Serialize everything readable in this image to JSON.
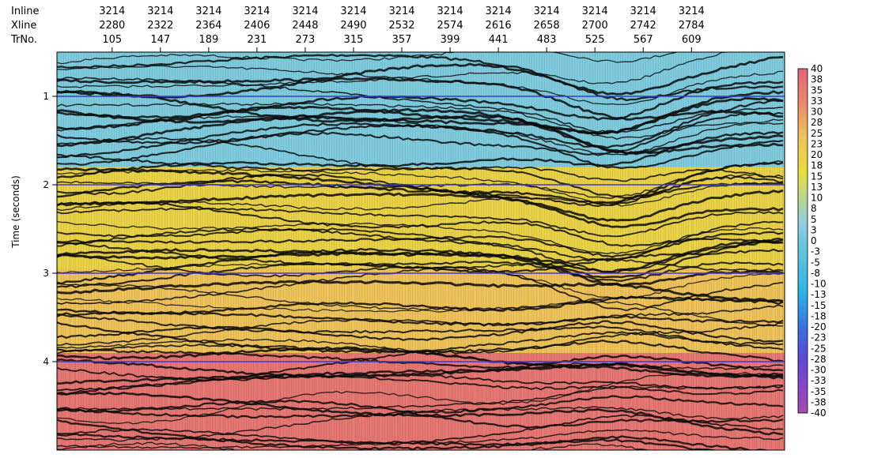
{
  "chart_data": {
    "type": "heatmap",
    "title": "",
    "ylabel": "Time (seconds)",
    "header_row_labels": [
      "Inline",
      "Xline",
      "TrNo."
    ],
    "traces": [
      {
        "inline": "3214",
        "xline": "2280",
        "trno": "105"
      },
      {
        "inline": "3214",
        "xline": "2322",
        "trno": "147"
      },
      {
        "inline": "3214",
        "xline": "2364",
        "trno": "189"
      },
      {
        "inline": "3214",
        "xline": "2406",
        "trno": "231"
      },
      {
        "inline": "3214",
        "xline": "2448",
        "trno": "273"
      },
      {
        "inline": "3214",
        "xline": "2490",
        "trno": "315"
      },
      {
        "inline": "3214",
        "xline": "2532",
        "trno": "357"
      },
      {
        "inline": "3214",
        "xline": "2574",
        "trno": "399"
      },
      {
        "inline": "3214",
        "xline": "2616",
        "trno": "441"
      },
      {
        "inline": "3214",
        "xline": "2658",
        "trno": "483"
      },
      {
        "inline": "3214",
        "xline": "2700",
        "trno": "525"
      },
      {
        "inline": "3214",
        "xline": "2742",
        "trno": "567"
      },
      {
        "inline": "3214",
        "xline": "2784",
        "trno": "609"
      }
    ],
    "trace_range": [
      57,
      690
    ],
    "time_ticks": [
      1,
      2,
      3,
      4
    ],
    "ylim": [
      0.5,
      5.0
    ],
    "horizon_lines_at": [
      1,
      2,
      3,
      4
    ],
    "horizon_color": "#3a3ad0",
    "colorbar": {
      "labels": [
        "40",
        "38",
        "35",
        "33",
        "30",
        "28",
        "25",
        "23",
        "20",
        "18",
        "15",
        "13",
        "10",
        "8",
        "5",
        "3",
        "0",
        "-3",
        "-5",
        "-8",
        "-10",
        "-13",
        "-15",
        "-18",
        "-20",
        "-23",
        "-25",
        "-28",
        "-30",
        "-33",
        "-35",
        "-38",
        "-40"
      ],
      "range": [
        -40,
        40
      ],
      "colors": [
        "#e46479",
        "#e88a6c",
        "#eec35a",
        "#e9dc3c",
        "#8fd0e0",
        "#6fc8dc",
        "#2fb3e6",
        "#3a72e0",
        "#5a4ad6",
        "#8746c4",
        "#a54cb0"
      ],
      "color_values": [
        40,
        32,
        24,
        16,
        4,
        0,
        -12,
        -20,
        -27,
        -34,
        -40
      ]
    },
    "background_zones": [
      {
        "from_time": 0.5,
        "to_time": 1.8,
        "value": 2
      },
      {
        "from_time": 1.8,
        "to_time": 2.95,
        "value": 19
      },
      {
        "from_time": 2.95,
        "to_time": 3.9,
        "value": 24
      },
      {
        "from_time": 3.9,
        "to_time": 5.0,
        "value": 36
      }
    ]
  }
}
